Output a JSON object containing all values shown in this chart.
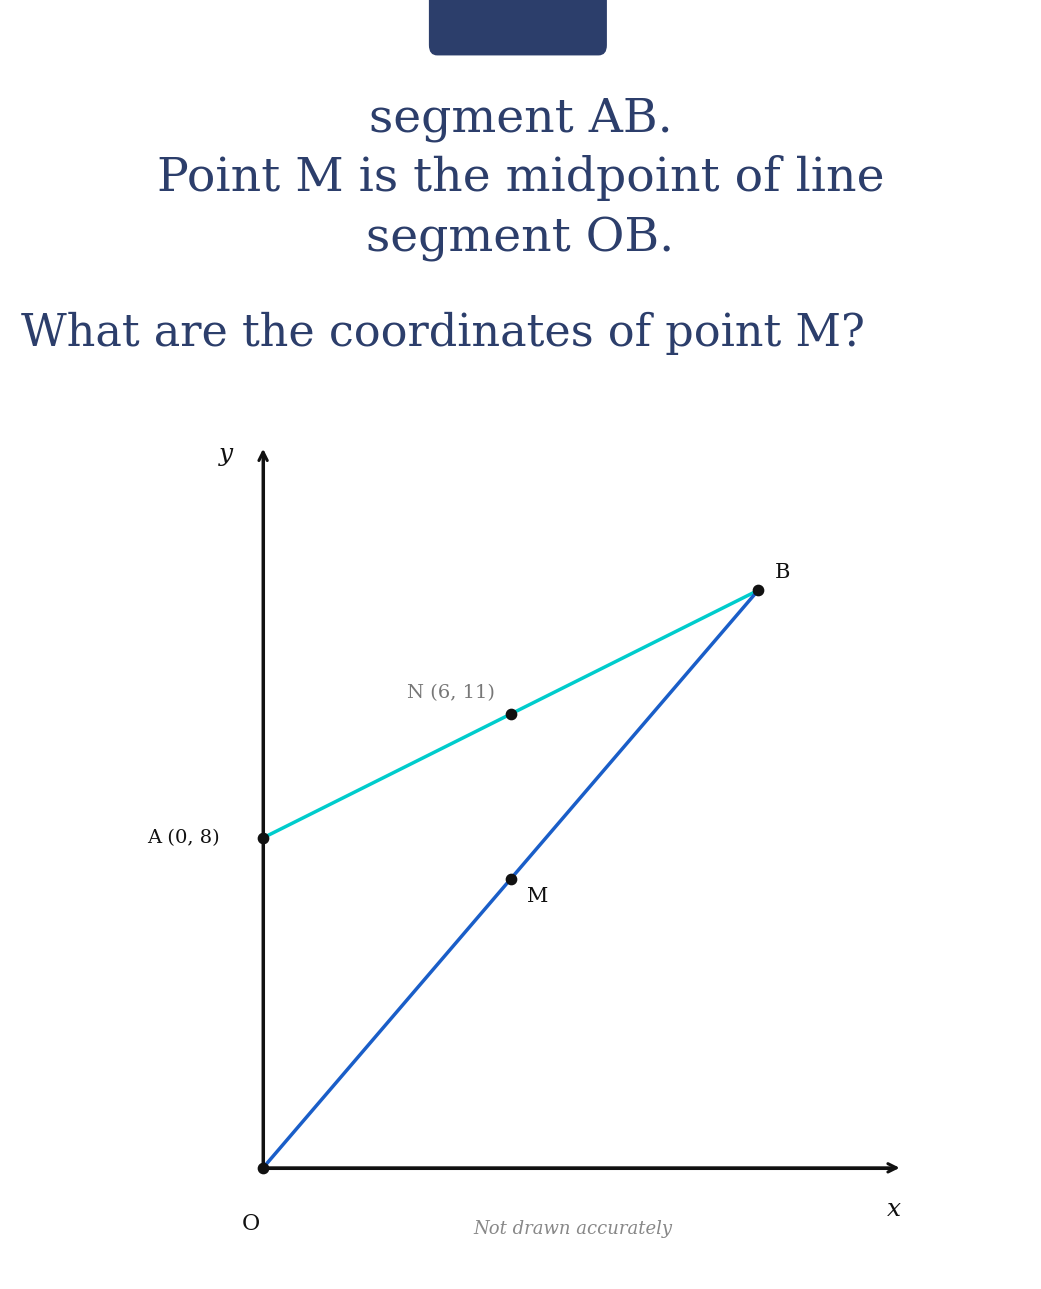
{
  "bg_color": "#ffffff",
  "text_color": "#2c3e6b",
  "title_line1": "segment AB.",
  "title_line2": "Point M is the midpoint of line",
  "title_line3": "segment OB.",
  "question": "What are the coordinates of point M?",
  "points": {
    "O": [
      0,
      0
    ],
    "A": [
      0,
      8
    ],
    "B": [
      12,
      14
    ],
    "N": [
      6,
      11
    ],
    "M": [
      6,
      7
    ]
  },
  "line_AB_color": "#00cccc",
  "line_OB_color": "#1a5ec8",
  "axis_color": "#111111",
  "point_color": "#111111",
  "N_label_color": "#777777",
  "note_text": "Not drawn accurately",
  "blue_rect_color": "#2c3e6b",
  "title_fontsize": 34,
  "question_fontsize": 32,
  "note_fontsize": 13,
  "point_label_fontsize": 14,
  "axis_label_fontsize": 18,
  "point_size": 55
}
